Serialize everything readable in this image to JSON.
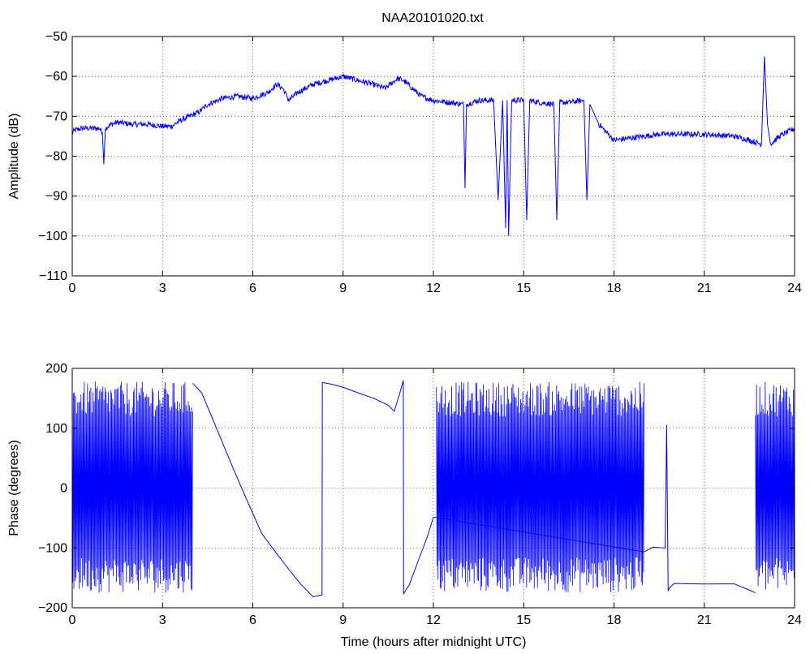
{
  "figure": {
    "title": "NAA20101020.txt"
  },
  "chart_data": [
    {
      "type": "line",
      "title": "NAA20101020.txt",
      "xlabel": "",
      "ylabel": "Amplitude (dB)",
      "xlim": [
        0,
        24
      ],
      "ylim": [
        -110,
        -50
      ],
      "xticks": [
        "0",
        "3",
        "6",
        "9",
        "12",
        "15",
        "18",
        "21",
        "24"
      ],
      "yticks": [
        "−110",
        "−100",
        "−90",
        "−80",
        "−70",
        "−60",
        "−50"
      ],
      "grid": true,
      "line_color": "#0000ff",
      "x": [
        0,
        0.1,
        0.3,
        0.6,
        0.9,
        1.0,
        1.05,
        1.1,
        1.3,
        1.5,
        2.0,
        2.5,
        3.0,
        3.3,
        3.6,
        3.9,
        4.2,
        4.5,
        5.0,
        5.5,
        6.0,
        6.5,
        6.8,
        7.0,
        7.2,
        7.5,
        8.0,
        8.5,
        9.0,
        9.5,
        10.0,
        10.4,
        10.8,
        11.0,
        11.3,
        11.6,
        12.0,
        12.5,
        13.0,
        13.05,
        13.1,
        13.5,
        14.0,
        14.15,
        14.3,
        14.4,
        14.45,
        14.5,
        14.6,
        15.0,
        15.1,
        15.2,
        15.5,
        16.0,
        16.1,
        16.2,
        16.5,
        17.0,
        17.1,
        17.2,
        17.5,
        18.0,
        18.5,
        19.0,
        19.5,
        20.0,
        21.0,
        22.0,
        22.5,
        22.9,
        23.0,
        23.1,
        23.2,
        23.5,
        24.0
      ],
      "y": [
        -74,
        -73.5,
        -73,
        -73,
        -73,
        -74,
        -82,
        -73,
        -72,
        -71.5,
        -72,
        -72,
        -72.5,
        -72.5,
        -71,
        -70,
        -69,
        -67,
        -65.5,
        -65,
        -65.5,
        -64,
        -62,
        -63,
        -66,
        -64,
        -62,
        -61,
        -60,
        -61,
        -62,
        -63,
        -60.5,
        -61,
        -63,
        -65,
        -66,
        -66.5,
        -67,
        -88,
        -67,
        -66,
        -66,
        -91,
        -66,
        -98,
        -66,
        -100,
        -66,
        -66,
        -96,
        -66,
        -66.5,
        -67,
        -96,
        -66.5,
        -66.5,
        -66,
        -91,
        -67,
        -72,
        -76,
        -75.5,
        -75,
        -74.5,
        -74.5,
        -74.5,
        -75,
        -76,
        -77,
        -55,
        -72,
        -77,
        -75,
        -73
      ]
    },
    {
      "type": "line",
      "title": "",
      "xlabel": "Time (hours after midnight UTC)",
      "ylabel": "Phase (degrees)",
      "xlim": [
        0,
        24
      ],
      "ylim": [
        -200,
        200
      ],
      "xticks": [
        "0",
        "3",
        "6",
        "9",
        "12",
        "15",
        "18",
        "21",
        "24"
      ],
      "yticks": [
        "−200",
        "−100",
        "0",
        "100",
        "200"
      ],
      "grid": true,
      "line_color": "#0000ff",
      "wrap_segments": [
        [
          0,
          4.0
        ],
        [
          12.1,
          19.0
        ],
        [
          22.7,
          24.0
        ]
      ],
      "x": [
        4.0,
        4.3,
        4.8,
        5.3,
        5.8,
        6.3,
        6.8,
        7.2,
        7.6,
        8.0,
        8.3,
        8.31,
        8.6,
        9.0,
        9.5,
        10.0,
        10.5,
        10.7,
        10.9,
        11.0,
        11.01,
        11.2,
        11.5,
        11.8,
        12.0,
        19.0,
        19.3,
        19.7,
        19.75,
        19.8,
        19.85,
        20.0,
        21.0,
        22.0,
        22.5,
        22.7
      ],
      "y": [
        175,
        160,
        100,
        40,
        -20,
        -75,
        -110,
        -135,
        -160,
        -180,
        -180,
        178,
        175,
        170,
        160,
        150,
        140,
        128,
        160,
        180,
        -175,
        -160,
        -120,
        -80,
        -50,
        -105,
        -100,
        -100,
        105,
        -170,
        -165,
        -160,
        -160,
        -160,
        -170,
        -175
      ]
    }
  ]
}
